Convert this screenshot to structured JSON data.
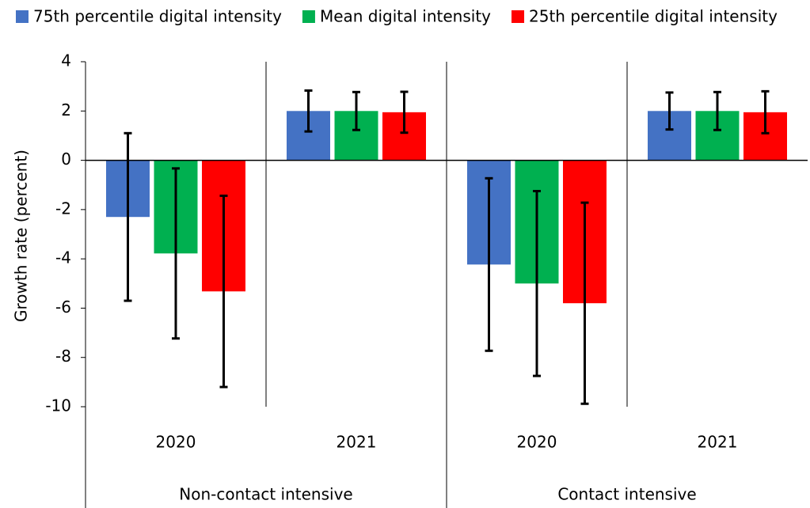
{
  "chart_data": {
    "type": "bar",
    "y_label": "Growth rate (percent)",
    "categories": [
      "2020",
      "2021",
      "2020",
      "2021"
    ],
    "category_groups": [
      "Non-contact intensive",
      "Contact intensive"
    ],
    "series": [
      {
        "name": "75th percentile digital intensity",
        "color": "#4472c4",
        "values": [
          -2.3,
          2.0,
          -4.23,
          2.0
        ],
        "errors": [
          3.4,
          0.83,
          3.5,
          0.75
        ]
      },
      {
        "name": "Mean digital intensity",
        "color": "#00b050",
        "values": [
          -3.78,
          2.0,
          -5.0,
          2.0
        ],
        "errors": [
          3.45,
          0.77,
          3.75,
          0.77
        ]
      },
      {
        "name": "25th percentile digital intensity",
        "color": "#ff0000",
        "values": [
          -5.32,
          1.95,
          -5.8,
          1.95
        ],
        "errors": [
          3.88,
          0.83,
          4.08,
          0.85
        ]
      }
    ],
    "ylim": [
      -10,
      4
    ],
    "yticks": [
      -10,
      -8,
      -6,
      -4,
      -2,
      0,
      2,
      4
    ],
    "grid": false,
    "legend": "top"
  }
}
